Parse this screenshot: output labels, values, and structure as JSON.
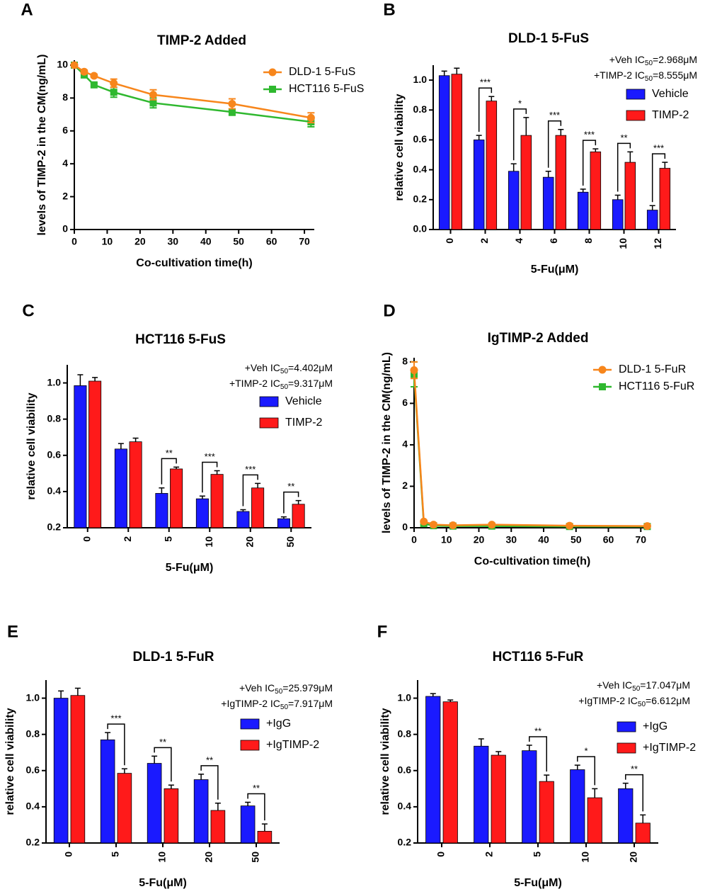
{
  "chart_data": [
    {
      "type": "line",
      "panel": "A",
      "title": "TIMP-2 Added",
      "x_label": "Co-cultivation time(h)",
      "y_label": "levels of TIMP-2 in the CM(ng/mL)",
      "x": [
        0,
        3,
        6,
        12,
        24,
        48,
        72
      ],
      "series": [
        {
          "name": "DLD-1 5-FuS",
          "color": "#f7861c",
          "marker": "circle",
          "values": [
            10,
            9.6,
            9.35,
            8.9,
            8.2,
            7.65,
            6.8
          ],
          "errors": [
            0.05,
            0.1,
            0.1,
            0.25,
            0.3,
            0.3,
            0.3
          ]
        },
        {
          "name": "HCT116 5-FuS",
          "color": "#2fb82f",
          "marker": "square",
          "values": [
            10,
            9.4,
            8.8,
            8.35,
            7.7,
            7.15,
            6.55
          ],
          "errors": [
            0.05,
            0.15,
            0.1,
            0.3,
            0.3,
            0.2,
            0.3
          ]
        }
      ],
      "xlim": [
        0,
        73
      ],
      "xticks": [
        0,
        10,
        20,
        30,
        40,
        50,
        60,
        70
      ],
      "ylim": [
        0,
        10.3
      ],
      "yticks": [
        0,
        2,
        4,
        6,
        8,
        10
      ]
    },
    {
      "type": "bar",
      "panel": "B",
      "title": "DLD-1 5-FuS",
      "x_label": "5-Fu(μM)",
      "y_label": "relative cell viability",
      "notes": [
        [
          "+Veh IC",
          "50",
          "=2.968μM"
        ],
        [
          "+TIMP-2  IC",
          "50",
          "=8.555μM"
        ]
      ],
      "categories": [
        "0",
        "2",
        "4",
        "6",
        "8",
        "10",
        "12"
      ],
      "series": [
        {
          "name": "Vehicle",
          "color": "#1a1aff",
          "values": [
            1.03,
            0.6,
            0.39,
            0.35,
            0.25,
            0.2,
            0.13
          ],
          "errors": [
            0.03,
            0.03,
            0.05,
            0.04,
            0.02,
            0.03,
            0.03
          ]
        },
        {
          "name": "TIMP-2",
          "color": "#ff1a1a",
          "values": [
            1.04,
            0.86,
            0.63,
            0.63,
            0.52,
            0.45,
            0.41
          ],
          "errors": [
            0.04,
            0.03,
            0.12,
            0.04,
            0.02,
            0.07,
            0.04
          ]
        }
      ],
      "significance": [
        null,
        "***",
        "*",
        "***",
        "***",
        "**",
        "***"
      ],
      "ylim": [
        0,
        1.1
      ],
      "yticks": [
        {
          "value": 0,
          "label": "0.0"
        },
        0.2,
        0.4,
        0.6,
        0.8,
        {
          "value": 1,
          "label": "1.0"
        }
      ]
    },
    {
      "type": "bar",
      "panel": "C",
      "title": "HCT116  5-FuS",
      "x_label": "5-Fu(μM)",
      "y_label": "relative cell viability",
      "notes": [
        [
          "+Veh IC",
          "50",
          "=4.402μM"
        ],
        [
          "+TIMP-2 IC",
          "50",
          "=9.317μM"
        ]
      ],
      "categories": [
        "0",
        "2",
        "5",
        "10",
        "20",
        "50"
      ],
      "series": [
        {
          "name": "Vehicle",
          "color": "#1a1aff",
          "values": [
            0.985,
            0.635,
            0.39,
            0.36,
            0.29,
            0.25
          ],
          "errors": [
            0.06,
            0.03,
            0.03,
            0.015,
            0.01,
            0.01
          ]
        },
        {
          "name": "TIMP-2",
          "color": "#ff1a1a",
          "values": [
            1.01,
            0.675,
            0.525,
            0.495,
            0.42,
            0.33
          ],
          "errors": [
            0.02,
            0.02,
            0.01,
            0.02,
            0.025,
            0.02
          ]
        }
      ],
      "significance": [
        null,
        null,
        "**",
        "***",
        "***",
        "**"
      ],
      "ylim": [
        0.2,
        1.1
      ],
      "yticks": [
        0.2,
        0.4,
        0.6,
        0.8,
        {
          "value": 1,
          "label": "1.0"
        }
      ]
    },
    {
      "type": "line",
      "panel": "D",
      "title": "IgTIMP-2 Added",
      "x_label": "Co-cultivation time(h)",
      "y_label": "levels of TIMP-2 in the CM(ng/mL)",
      "x": [
        0,
        3,
        6,
        12,
        24,
        48,
        72
      ],
      "series": [
        {
          "name": "DLD-1 5-FuR",
          "color": "#f7861c",
          "marker": "circle",
          "values": [
            7.6,
            0.3,
            0.15,
            0.12,
            0.15,
            0.1,
            0.08
          ],
          "errors": [
            0.4,
            0.05,
            0.03,
            0.03,
            0.03,
            0.03,
            0.03
          ]
        },
        {
          "name": "HCT116 5-FuR",
          "color": "#2fb82f",
          "marker": "square",
          "values": [
            7.4,
            0.2,
            0.1,
            0.08,
            0.08,
            0.06,
            0.06
          ],
          "errors": [
            0.6,
            0.05,
            0.03,
            0.03,
            0.03,
            0.03,
            0.03
          ]
        }
      ],
      "xlim": [
        0,
        73
      ],
      "xticks": [
        0,
        10,
        20,
        30,
        40,
        50,
        60,
        70
      ],
      "ylim": [
        0,
        8.2
      ],
      "yticks": [
        0,
        2,
        4,
        6,
        8
      ]
    },
    {
      "type": "bar",
      "panel": "E",
      "title": "DLD-1 5-FuR",
      "x_label": "5-Fu(μM)",
      "y_label": "relative cell viability",
      "notes": [
        [
          "+Veh IC",
          "50",
          "=25.979μM"
        ],
        [
          "+IgTIMP-2 IC",
          "50",
          "=7.917μM"
        ]
      ],
      "categories": [
        "0",
        "5",
        "10",
        "20",
        "50"
      ],
      "series": [
        {
          "name": "+IgG",
          "color": "#1a1aff",
          "values": [
            1.0,
            0.77,
            0.64,
            0.55,
            0.405
          ],
          "errors": [
            0.04,
            0.04,
            0.04,
            0.03,
            0.02
          ]
        },
        {
          "name": "+IgTIMP-2",
          "color": "#ff1a1a",
          "values": [
            1.015,
            0.585,
            0.5,
            0.38,
            0.265
          ],
          "errors": [
            0.04,
            0.025,
            0.02,
            0.04,
            0.04
          ]
        }
      ],
      "significance": [
        null,
        "***",
        "**",
        "**",
        "**"
      ],
      "ylim": [
        0.2,
        1.1
      ],
      "yticks": [
        0.2,
        0.4,
        0.6,
        0.8,
        {
          "value": 1,
          "label": "1.0"
        }
      ]
    },
    {
      "type": "bar",
      "panel": "F",
      "title": "HCT116 5-FuR",
      "x_label": "5-Fu(μM)",
      "y_label": "relative cell viability",
      "notes": [
        [
          "+Veh IC",
          "50",
          "=17.047μM"
        ],
        [
          "+IgTIMP-2 IC",
          "50",
          "=6.612μM"
        ]
      ],
      "categories": [
        "0",
        "2",
        "5",
        "10",
        "20"
      ],
      "series": [
        {
          "name": "+IgG",
          "color": "#1a1aff",
          "values": [
            1.01,
            0.735,
            0.71,
            0.605,
            0.5
          ],
          "errors": [
            0.015,
            0.04,
            0.03,
            0.025,
            0.03
          ]
        },
        {
          "name": "+IgTIMP-2",
          "color": "#ff1a1a",
          "values": [
            0.98,
            0.685,
            0.54,
            0.45,
            0.31
          ],
          "errors": [
            0.01,
            0.02,
            0.035,
            0.05,
            0.045
          ]
        }
      ],
      "significance": [
        null,
        null,
        "**",
        "*",
        "**"
      ],
      "ylim": [
        0.2,
        1.1
      ],
      "yticks": [
        0.2,
        0.4,
        0.6,
        0.8,
        {
          "value": 1,
          "label": "1.0"
        }
      ]
    }
  ]
}
